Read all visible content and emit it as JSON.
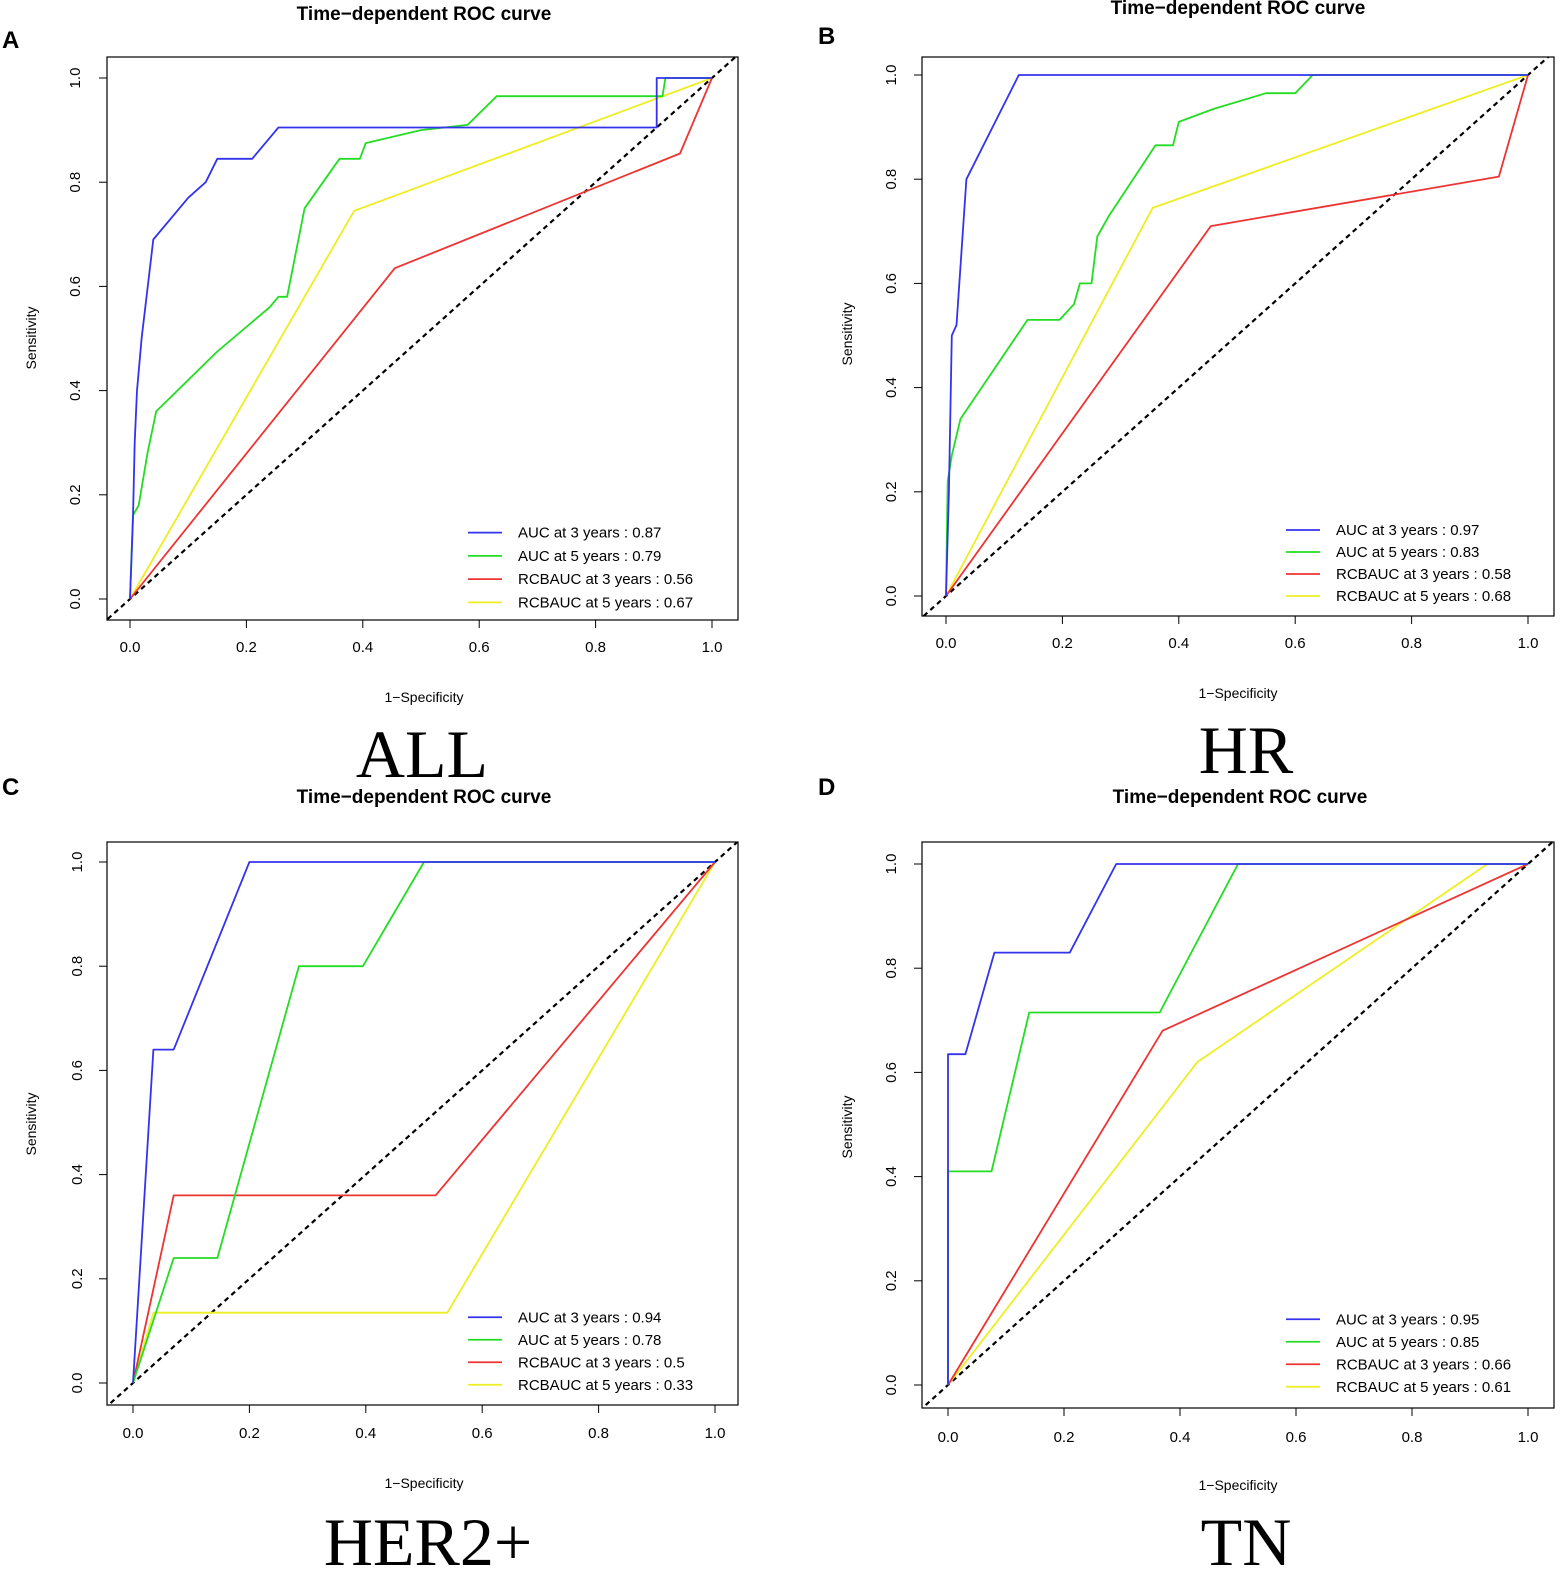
{
  "figure": {
    "panels": [
      {
        "letter": "A",
        "subgroup": "ALL"
      },
      {
        "letter": "B",
        "subgroup": "HR"
      },
      {
        "letter": "C",
        "subgroup": "HER2+"
      },
      {
        "letter": "D",
        "subgroup": "TN"
      }
    ]
  },
  "colors": {
    "auc3": "#3333ee",
    "auc5": "#22dd22",
    "rcb3": "#ee3333",
    "rcb5": "#eeee22",
    "reference": "#000000"
  },
  "chart_data": [
    {
      "type": "line",
      "title": "Time−dependent ROC curve",
      "xlabel": "1−Specificity",
      "ylabel": "Sensitivity",
      "xlim": [
        0,
        1
      ],
      "ylim": [
        0,
        1
      ],
      "ticks": [
        "0.0",
        "0.2",
        "0.4",
        "0.6",
        "0.8",
        "1.0"
      ],
      "reference_line": [
        [
          0,
          0
        ],
        [
          1,
          1
        ]
      ],
      "legend_position": "bottom-right",
      "series": [
        {
          "name": "AUC at 3 years : 0.87",
          "color_key": "auc3",
          "points": [
            [
              0,
              0
            ],
            [
              0.005,
              0.15
            ],
            [
              0.008,
              0.3
            ],
            [
              0.012,
              0.4
            ],
            [
              0.02,
              0.5
            ],
            [
              0.04,
              0.69
            ],
            [
              0.1,
              0.77
            ],
            [
              0.12,
              0.79
            ],
            [
              0.13,
              0.8
            ],
            [
              0.15,
              0.845
            ],
            [
              0.21,
              0.845
            ],
            [
              0.255,
              0.905
            ],
            [
              0.6,
              0.905
            ],
            [
              0.905,
              0.905
            ],
            [
              0.905,
              1.0
            ],
            [
              1.0,
              1.0
            ]
          ]
        },
        {
          "name": "AUC at 5 years : 0.79",
          "color_key": "auc5",
          "points": [
            [
              0,
              0
            ],
            [
              0.005,
              0.16
            ],
            [
              0.015,
              0.18
            ],
            [
              0.03,
              0.28
            ],
            [
              0.045,
              0.36
            ],
            [
              0.15,
              0.475
            ],
            [
              0.24,
              0.56
            ],
            [
              0.255,
              0.58
            ],
            [
              0.27,
              0.58
            ],
            [
              0.3,
              0.75
            ],
            [
              0.36,
              0.845
            ],
            [
              0.395,
              0.845
            ],
            [
              0.405,
              0.875
            ],
            [
              0.5,
              0.9
            ],
            [
              0.58,
              0.91
            ],
            [
              0.63,
              0.965
            ],
            [
              0.915,
              0.965
            ],
            [
              0.92,
              1.0
            ],
            [
              1.0,
              1.0
            ]
          ]
        },
        {
          "name": "RCBAUC at 3 years : 0.56",
          "color_key": "rcb3",
          "points": [
            [
              0,
              0
            ],
            [
              0.455,
              0.635
            ],
            [
              0.945,
              0.855
            ],
            [
              1.0,
              1.0
            ]
          ]
        },
        {
          "name": "RCBAUC at 5 years : 0.67",
          "color_key": "rcb5",
          "points": [
            [
              0,
              0
            ],
            [
              0.385,
              0.745
            ],
            [
              1.0,
              1.0
            ]
          ]
        }
      ]
    },
    {
      "type": "line",
      "title": "Time−dependent ROC curve",
      "xlabel": "1−Specificity",
      "ylabel": "Sensitivity",
      "xlim": [
        0,
        1
      ],
      "ylim": [
        0,
        1
      ],
      "ticks": [
        "0.0",
        "0.2",
        "0.4",
        "0.6",
        "0.8",
        "1.0"
      ],
      "reference_line": [
        [
          0,
          0
        ],
        [
          1,
          1
        ]
      ],
      "legend_position": "bottom-right",
      "series": [
        {
          "name": "AUC at 3 years : 0.97",
          "color_key": "auc3",
          "points": [
            [
              0,
              0
            ],
            [
              0.005,
              0.2
            ],
            [
              0.01,
              0.5
            ],
            [
              0.018,
              0.52
            ],
            [
              0.035,
              0.8
            ],
            [
              0.125,
              1.0
            ],
            [
              1.0,
              1.0
            ]
          ]
        },
        {
          "name": "AUC at 5 years : 0.83",
          "color_key": "auc5",
          "points": [
            [
              0,
              0
            ],
            [
              0.003,
              0.22
            ],
            [
              0.01,
              0.27
            ],
            [
              0.025,
              0.34
            ],
            [
              0.14,
              0.53
            ],
            [
              0.195,
              0.53
            ],
            [
              0.22,
              0.56
            ],
            [
              0.23,
              0.6
            ],
            [
              0.25,
              0.6
            ],
            [
              0.26,
              0.69
            ],
            [
              0.28,
              0.73
            ],
            [
              0.36,
              0.865
            ],
            [
              0.39,
              0.865
            ],
            [
              0.4,
              0.91
            ],
            [
              0.46,
              0.935
            ],
            [
              0.55,
              0.965
            ],
            [
              0.6,
              0.965
            ],
            [
              0.63,
              1.0
            ],
            [
              1.0,
              1.0
            ]
          ]
        },
        {
          "name": "RCBAUC at 3 years : 0.58",
          "color_key": "rcb3",
          "points": [
            [
              0,
              0
            ],
            [
              0.455,
              0.71
            ],
            [
              0.95,
              0.805
            ],
            [
              1.0,
              1.0
            ]
          ]
        },
        {
          "name": "RCBAUC at 5 years : 0.68",
          "color_key": "rcb5",
          "points": [
            [
              0,
              0
            ],
            [
              0.355,
              0.745
            ],
            [
              1.0,
              1.0
            ]
          ]
        }
      ]
    },
    {
      "type": "line",
      "title": "Time−dependent ROC curve",
      "xlabel": "1−Specificity",
      "ylabel": "Sensitivity",
      "xlim": [
        0,
        1
      ],
      "ylim": [
        0,
        1
      ],
      "ticks": [
        "0.0",
        "0.2",
        "0.4",
        "0.6",
        "0.8",
        "1.0"
      ],
      "reference_line": [
        [
          0,
          0
        ],
        [
          1,
          1
        ]
      ],
      "legend_position": "bottom-right",
      "series": [
        {
          "name": "AUC at 3 years : 0.94",
          "color_key": "auc3",
          "points": [
            [
              0,
              0
            ],
            [
              0.035,
              0.64
            ],
            [
              0.07,
              0.64
            ],
            [
              0.2,
              1.0
            ],
            [
              1.0,
              1.0
            ]
          ]
        },
        {
          "name": "AUC at 5 years : 0.78",
          "color_key": "auc5",
          "points": [
            [
              0,
              0
            ],
            [
              0.07,
              0.24
            ],
            [
              0.145,
              0.24
            ],
            [
              0.285,
              0.8
            ],
            [
              0.395,
              0.8
            ],
            [
              0.5,
              1.0
            ],
            [
              1.0,
              1.0
            ]
          ]
        },
        {
          "name": "RCBAUC at 3 years : 0.5",
          "color_key": "rcb3",
          "points": [
            [
              0,
              0
            ],
            [
              0.07,
              0.36
            ],
            [
              0.52,
              0.36
            ],
            [
              1.0,
              1.0
            ]
          ]
        },
        {
          "name": "RCBAUC at 5 years : 0.33",
          "color_key": "rcb5",
          "points": [
            [
              0,
              0
            ],
            [
              0.035,
              0.135
            ],
            [
              0.54,
              0.135
            ],
            [
              1.0,
              1.0
            ]
          ]
        }
      ]
    },
    {
      "type": "line",
      "title": "Time−dependent ROC curve",
      "xlabel": "1−Specificity",
      "ylabel": "Sensitivity",
      "xlim": [
        0,
        1
      ],
      "ylim": [
        0,
        1
      ],
      "ticks": [
        "0.0",
        "0.2",
        "0.4",
        "0.6",
        "0.8",
        "1.0"
      ],
      "reference_line": [
        [
          0,
          0
        ],
        [
          1,
          1
        ]
      ],
      "legend_position": "bottom-right",
      "series": [
        {
          "name": "AUC at 3 years : 0.95",
          "color_key": "auc3",
          "points": [
            [
              0,
              0
            ],
            [
              0,
              0.635
            ],
            [
              0.03,
              0.635
            ],
            [
              0.08,
              0.83
            ],
            [
              0.21,
              0.83
            ],
            [
              0.29,
              1.0
            ],
            [
              1.0,
              1.0
            ]
          ]
        },
        {
          "name": "AUC at 5 years : 0.85",
          "color_key": "auc5",
          "points": [
            [
              0,
              0
            ],
            [
              0,
              0.41
            ],
            [
              0.075,
              0.41
            ],
            [
              0.14,
              0.715
            ],
            [
              0.365,
              0.715
            ],
            [
              0.5,
              1.0
            ],
            [
              1.0,
              1.0
            ]
          ]
        },
        {
          "name": "RCBAUC at 3 years : 0.66",
          "color_key": "rcb3",
          "points": [
            [
              0,
              0
            ],
            [
              0.37,
              0.68
            ],
            [
              1.0,
              1.0
            ]
          ]
        },
        {
          "name": "RCBAUC at 5 years : 0.61",
          "color_key": "rcb5",
          "points": [
            [
              0,
              0
            ],
            [
              0.43,
              0.62
            ],
            [
              0.93,
              1.0
            ],
            [
              1.0,
              1.0
            ]
          ]
        }
      ]
    }
  ]
}
